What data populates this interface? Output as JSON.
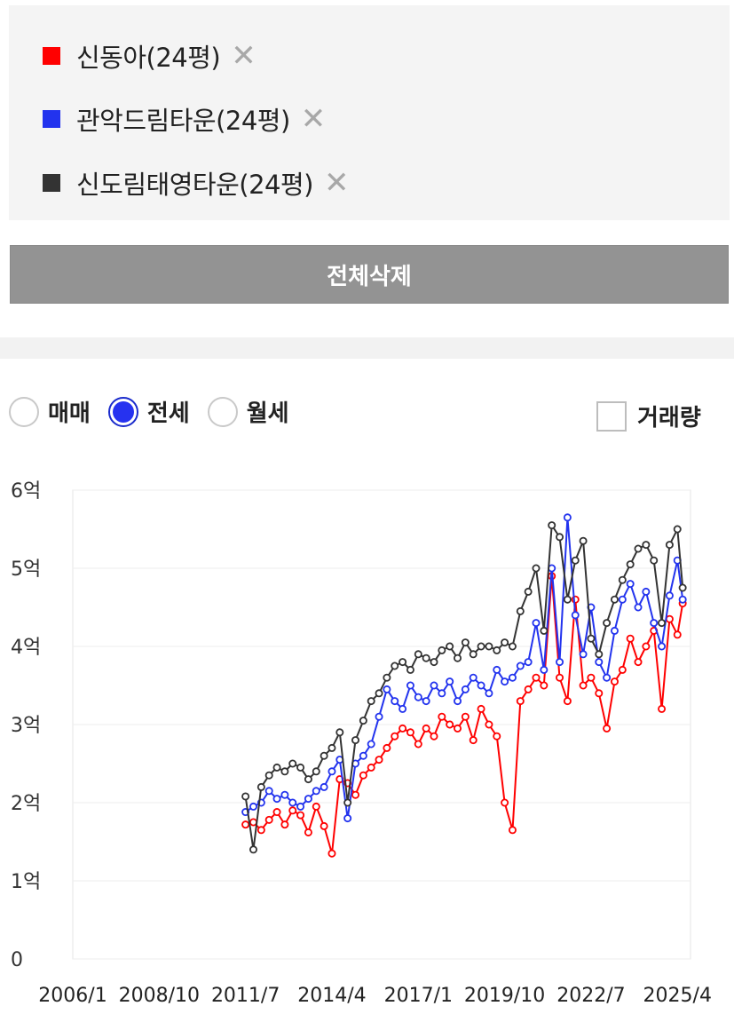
{
  "legend": {
    "items": [
      {
        "label": "신동아(24평)",
        "color": "#ff0000",
        "remove": "✕"
      },
      {
        "label": "관악드림타운(24평)",
        "color": "#2233ee",
        "remove": "✕"
      },
      {
        "label": "신도림태영타운(24평)",
        "color": "#333333",
        "remove": "✕"
      }
    ]
  },
  "clear_button": {
    "label": "전체삭제"
  },
  "trade_type": {
    "options": [
      "매매",
      "전세",
      "월세"
    ],
    "selected": "전세"
  },
  "volume_toggle": {
    "label": "거래량",
    "checked": false
  },
  "chart_data": {
    "type": "line",
    "xlabel": "",
    "ylabel": "",
    "x_ticks": [
      "2006/1",
      "2008/10",
      "2011/7",
      "2014/4",
      "2017/1",
      "2019/10",
      "2022/7",
      "2025/4"
    ],
    "xlim": [
      "2006/1",
      "2025/9"
    ],
    "y_ticks": [
      "0",
      "1억",
      "2억",
      "3억",
      "4억",
      "5억",
      "6억"
    ],
    "ylim": [
      0,
      6
    ],
    "y_unit": "억",
    "grid": true,
    "series": [
      {
        "name": "신동아(24평)",
        "color": "#ff0000",
        "points": [
          [
            "2011/7",
            1.72
          ],
          [
            "2011/10",
            1.75
          ],
          [
            "2012/1",
            1.65
          ],
          [
            "2012/4",
            1.78
          ],
          [
            "2012/7",
            1.88
          ],
          [
            "2012/10",
            1.72
          ],
          [
            "2013/1",
            1.9
          ],
          [
            "2013/4",
            1.84
          ],
          [
            "2013/7",
            1.62
          ],
          [
            "2013/10",
            1.95
          ],
          [
            "2014/1",
            1.7
          ],
          [
            "2014/4",
            1.35
          ],
          [
            "2014/7",
            2.3
          ],
          [
            "2014/10",
            2.25
          ],
          [
            "2015/1",
            2.1
          ],
          [
            "2015/4",
            2.35
          ],
          [
            "2015/7",
            2.45
          ],
          [
            "2015/10",
            2.55
          ],
          [
            "2016/1",
            2.7
          ],
          [
            "2016/4",
            2.85
          ],
          [
            "2016/7",
            2.95
          ],
          [
            "2016/10",
            2.9
          ],
          [
            "2017/1",
            2.75
          ],
          [
            "2017/4",
            2.95
          ],
          [
            "2017/7",
            2.85
          ],
          [
            "2017/10",
            3.1
          ],
          [
            "2018/1",
            3.0
          ],
          [
            "2018/4",
            2.95
          ],
          [
            "2018/7",
            3.1
          ],
          [
            "2018/10",
            2.8
          ],
          [
            "2019/1",
            3.2
          ],
          [
            "2019/4",
            3.0
          ],
          [
            "2019/7",
            2.85
          ],
          [
            "2019/10",
            2.0
          ],
          [
            "2020/1",
            1.65
          ],
          [
            "2020/4",
            3.3
          ],
          [
            "2020/7",
            3.45
          ],
          [
            "2020/10",
            3.6
          ],
          [
            "2021/1",
            3.5
          ],
          [
            "2021/4",
            4.9
          ],
          [
            "2021/7",
            3.6
          ],
          [
            "2021/10",
            3.3
          ],
          [
            "2022/1",
            4.6
          ],
          [
            "2022/4",
            3.5
          ],
          [
            "2022/7",
            3.6
          ],
          [
            "2022/10",
            3.4
          ],
          [
            "2023/1",
            2.95
          ],
          [
            "2023/4",
            3.55
          ],
          [
            "2023/7",
            3.7
          ],
          [
            "2023/10",
            4.1
          ],
          [
            "2024/1",
            3.8
          ],
          [
            "2024/4",
            4.0
          ],
          [
            "2024/7",
            4.2
          ],
          [
            "2024/10",
            3.2
          ],
          [
            "2025/1",
            4.35
          ],
          [
            "2025/4",
            4.15
          ],
          [
            "2025/6",
            4.55
          ]
        ]
      },
      {
        "name": "관악드림타운(24평)",
        "color": "#2233ee",
        "points": [
          [
            "2011/7",
            1.88
          ],
          [
            "2011/10",
            1.95
          ],
          [
            "2012/1",
            2.0
          ],
          [
            "2012/4",
            2.15
          ],
          [
            "2012/7",
            2.05
          ],
          [
            "2012/10",
            2.1
          ],
          [
            "2013/1",
            2.0
          ],
          [
            "2013/4",
            1.95
          ],
          [
            "2013/7",
            2.05
          ],
          [
            "2013/10",
            2.15
          ],
          [
            "2014/1",
            2.2
          ],
          [
            "2014/4",
            2.4
          ],
          [
            "2014/7",
            2.55
          ],
          [
            "2014/10",
            1.8
          ],
          [
            "2015/1",
            2.5
          ],
          [
            "2015/4",
            2.6
          ],
          [
            "2015/7",
            2.75
          ],
          [
            "2015/10",
            3.1
          ],
          [
            "2016/1",
            3.45
          ],
          [
            "2016/4",
            3.3
          ],
          [
            "2016/7",
            3.2
          ],
          [
            "2016/10",
            3.5
          ],
          [
            "2017/1",
            3.35
          ],
          [
            "2017/4",
            3.3
          ],
          [
            "2017/7",
            3.5
          ],
          [
            "2017/10",
            3.4
          ],
          [
            "2018/1",
            3.55
          ],
          [
            "2018/4",
            3.3
          ],
          [
            "2018/7",
            3.45
          ],
          [
            "2018/10",
            3.6
          ],
          [
            "2019/1",
            3.5
          ],
          [
            "2019/4",
            3.4
          ],
          [
            "2019/7",
            3.7
          ],
          [
            "2019/10",
            3.55
          ],
          [
            "2020/1",
            3.6
          ],
          [
            "2020/4",
            3.75
          ],
          [
            "2020/7",
            3.8
          ],
          [
            "2020/10",
            4.3
          ],
          [
            "2021/1",
            3.7
          ],
          [
            "2021/4",
            5.0
          ],
          [
            "2021/7",
            3.8
          ],
          [
            "2021/10",
            5.65
          ],
          [
            "2022/1",
            4.4
          ],
          [
            "2022/4",
            3.9
          ],
          [
            "2022/7",
            4.5
          ],
          [
            "2022/10",
            3.8
          ],
          [
            "2023/1",
            3.6
          ],
          [
            "2023/4",
            4.2
          ],
          [
            "2023/7",
            4.6
          ],
          [
            "2023/10",
            4.8
          ],
          [
            "2024/1",
            4.5
          ],
          [
            "2024/4",
            4.7
          ],
          [
            "2024/7",
            4.3
          ],
          [
            "2024/10",
            4.0
          ],
          [
            "2025/1",
            4.65
          ],
          [
            "2025/4",
            5.1
          ],
          [
            "2025/6",
            4.6
          ]
        ]
      },
      {
        "name": "신도림태영타운(24평)",
        "color": "#333333",
        "points": [
          [
            "2011/7",
            2.08
          ],
          [
            "2011/10",
            1.4
          ],
          [
            "2012/1",
            2.2
          ],
          [
            "2012/4",
            2.35
          ],
          [
            "2012/7",
            2.45
          ],
          [
            "2012/10",
            2.4
          ],
          [
            "2013/1",
            2.5
          ],
          [
            "2013/4",
            2.45
          ],
          [
            "2013/7",
            2.3
          ],
          [
            "2013/10",
            2.4
          ],
          [
            "2014/1",
            2.6
          ],
          [
            "2014/4",
            2.7
          ],
          [
            "2014/7",
            2.9
          ],
          [
            "2014/10",
            2.0
          ],
          [
            "2015/1",
            2.8
          ],
          [
            "2015/4",
            3.05
          ],
          [
            "2015/7",
            3.3
          ],
          [
            "2015/10",
            3.4
          ],
          [
            "2016/1",
            3.6
          ],
          [
            "2016/4",
            3.75
          ],
          [
            "2016/7",
            3.8
          ],
          [
            "2016/10",
            3.7
          ],
          [
            "2017/1",
            3.9
          ],
          [
            "2017/4",
            3.85
          ],
          [
            "2017/7",
            3.8
          ],
          [
            "2017/10",
            3.95
          ],
          [
            "2018/1",
            4.0
          ],
          [
            "2018/4",
            3.85
          ],
          [
            "2018/7",
            4.05
          ],
          [
            "2018/10",
            3.9
          ],
          [
            "2019/1",
            4.0
          ],
          [
            "2019/4",
            4.0
          ],
          [
            "2019/7",
            3.95
          ],
          [
            "2019/10",
            4.05
          ],
          [
            "2020/1",
            4.0
          ],
          [
            "2020/4",
            4.45
          ],
          [
            "2020/7",
            4.7
          ],
          [
            "2020/10",
            5.0
          ],
          [
            "2021/1",
            4.2
          ],
          [
            "2021/4",
            5.55
          ],
          [
            "2021/7",
            5.4
          ],
          [
            "2021/10",
            4.6
          ],
          [
            "2022/1",
            5.1
          ],
          [
            "2022/4",
            5.35
          ],
          [
            "2022/7",
            4.1
          ],
          [
            "2022/10",
            3.9
          ],
          [
            "2023/1",
            4.3
          ],
          [
            "2023/4",
            4.6
          ],
          [
            "2023/7",
            4.85
          ],
          [
            "2023/10",
            5.05
          ],
          [
            "2024/1",
            5.25
          ],
          [
            "2024/4",
            5.3
          ],
          [
            "2024/7",
            5.1
          ],
          [
            "2024/10",
            4.3
          ],
          [
            "2025/1",
            5.3
          ],
          [
            "2025/4",
            5.5
          ],
          [
            "2025/6",
            4.75
          ]
        ]
      }
    ]
  }
}
